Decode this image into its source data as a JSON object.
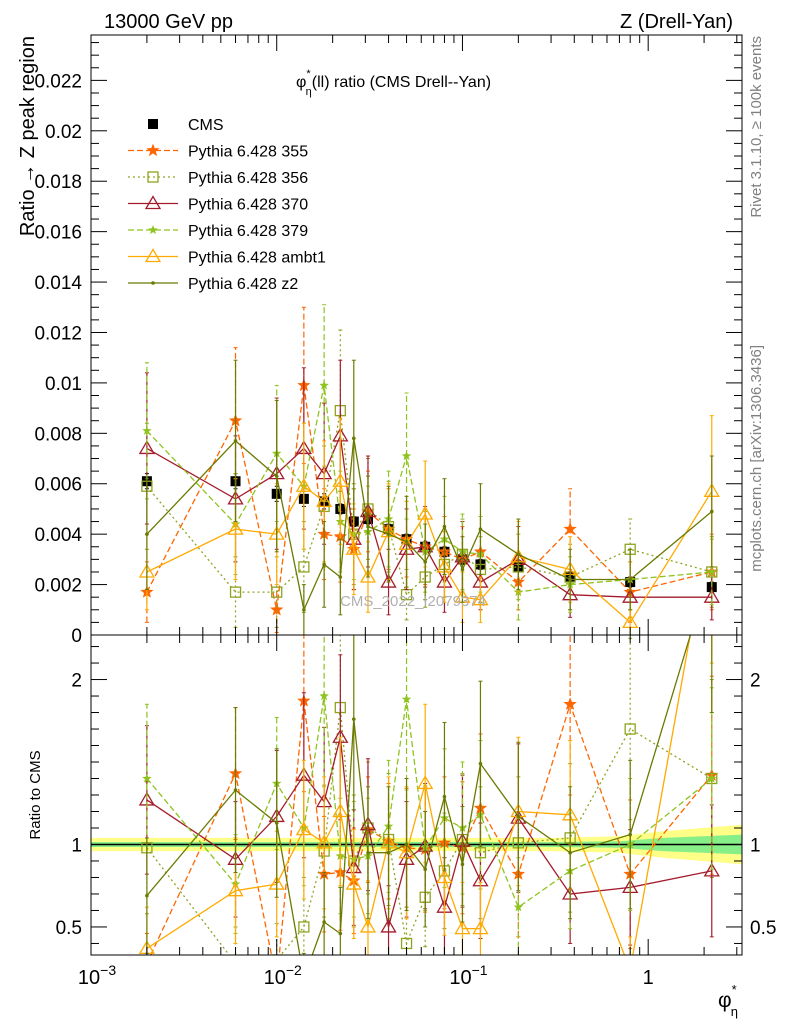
{
  "header": {
    "left": "13000 GeV pp",
    "right": "Z (Drell-Yan)"
  },
  "side_labels": {
    "rivet": "Rivet 3.1.10, ≥ 100k events",
    "mcplots": "mcplots.cern.ch [arXiv:1306.3436]"
  },
  "chart_data": [
    {
      "type": "line",
      "panel": "main",
      "title": "φ*η(ll) ratio (CMS Drell--Yan)",
      "ylabel": "Ratio → Z peak region",
      "xlabel": "",
      "x_scale": "log",
      "xlim": [
        0.001,
        3.2
      ],
      "ylim": [
        0,
        0.0238
      ],
      "yticks": [
        0,
        0.002,
        0.004,
        0.006,
        0.008,
        0.01,
        0.012,
        0.014,
        0.016,
        0.018,
        0.02,
        0.022
      ],
      "ytick_labels": [
        "0",
        "0.002",
        "0.004",
        "0.006",
        "0.008",
        "0.01",
        "0.012",
        "0.014",
        "0.016",
        "0.018",
        "0.02",
        "0.022"
      ],
      "xticks": [
        0.001,
        0.01,
        0.1,
        1
      ],
      "xtick_labels": [
        "10−3",
        "10−2",
        "10−1",
        "1"
      ],
      "watermark": "CMS_2022_I2079374",
      "legend_position": "top-left",
      "x": [
        0.002,
        0.006,
        0.01,
        0.014,
        0.018,
        0.022,
        0.026,
        0.031,
        0.04,
        0.05,
        0.063,
        0.08,
        0.1,
        0.125,
        0.2,
        0.38,
        0.8,
        2.2
      ],
      "series": [
        {
          "name": "CMS",
          "color": "#000000",
          "marker": "square",
          "values": [
            0.0061,
            0.0061,
            0.0056,
            0.0054,
            0.0053,
            0.005,
            0.0045,
            0.0046,
            0.0042,
            0.0038,
            0.0035,
            0.0033,
            0.003,
            0.0028,
            0.0027,
            0.0023,
            0.0021,
            0.0019
          ],
          "errors": [
            0.0003,
            0.0003,
            0.0003,
            0.0003,
            0.0003,
            0.0002,
            0.0002,
            0.0002,
            0.0002,
            0.0002,
            0.0002,
            0.0002,
            0.0002,
            0.0002,
            0.0002,
            0.0002,
            0.0002,
            0.0002
          ]
        },
        {
          "name": "Pythia 6.428 355",
          "color": "#ff6600",
          "dash": "6,3",
          "marker": "star",
          "values": [
            0.0017,
            0.0085,
            0.001,
            0.0099,
            0.004,
            0.0039,
            0.0034,
            0.0049,
            0.0042,
            0.0038,
            0.0035,
            0.0033,
            0.003,
            0.0033,
            0.0021,
            0.0042,
            0.0017,
            0.0025
          ],
          "errors": [
            0.0012,
            0.0029,
            0.0009,
            0.0031,
            0.0018,
            0.0018,
            0.0016,
            0.0016,
            0.0016,
            0.0015,
            0.0015,
            0.0014,
            0.0013,
            0.0014,
            0.0011,
            0.0016,
            0.0012,
            0.0015
          ]
        },
        {
          "name": "Pythia 6.428 356",
          "color": "#8fa320",
          "dash": "2,3",
          "marker": "square-open",
          "values": [
            0.0059,
            0.0017,
            0.0017,
            0.0027,
            0.0051,
            0.0089,
            0.004,
            0.005,
            0.0043,
            0.0016,
            0.0023,
            0.0028,
            0.0032,
            0.0026,
            0.0027,
            0.0023,
            0.0034,
            0.0025
          ],
          "errors": [
            0.0025,
            0.0014,
            0.0014,
            0.0018,
            0.0024,
            0.0032,
            0.002,
            0.002,
            0.0018,
            0.001,
            0.0012,
            0.0013,
            0.0014,
            0.0013,
            0.0013,
            0.0013,
            0.0012,
            0.0014
          ]
        },
        {
          "name": "Pythia 6.428 370",
          "color": "#a31c2c",
          "marker": "triangle-open",
          "values": [
            0.0074,
            0.0054,
            0.0064,
            0.0074,
            0.0064,
            0.0079,
            0.0038,
            0.0049,
            0.0021,
            0.0034,
            0.0035,
            0.0021,
            0.0031,
            0.0021,
            0.003,
            0.0016,
            0.0015,
            0.0015
          ],
          "errors": [
            0.003,
            0.0025,
            0.003,
            0.0032,
            0.0028,
            0.003,
            0.002,
            0.0022,
            0.0013,
            0.0016,
            0.0016,
            0.0012,
            0.0014,
            0.0011,
            0.0013,
            0.0009,
            0.0008,
            0.0009
          ]
        },
        {
          "name": "Pythia 6.428 379",
          "color": "#8fc31f",
          "dash": "6,3",
          "marker": "star-small",
          "values": [
            0.0081,
            0.0044,
            0.0072,
            0.0059,
            0.0099,
            0.0045,
            0.004,
            0.0041,
            0.0046,
            0.0071,
            0.0033,
            0.0038,
            0.0033,
            0.0032,
            0.0017,
            0.002,
            0.0022,
            0.0025
          ],
          "errors": [
            0.0027,
            0.002,
            0.0027,
            0.0025,
            0.0032,
            0.002,
            0.0018,
            0.0018,
            0.0019,
            0.0025,
            0.0016,
            0.0017,
            0.0015,
            0.0015,
            0.0011,
            0.0011,
            0.0012,
            0.0013
          ]
        },
        {
          "name": "Pythia 6.428 ambt1",
          "color": "#ffaa00",
          "marker": "triangle-open",
          "values": [
            0.0025,
            0.0042,
            0.004,
            0.0059,
            0.0053,
            0.0061,
            0.0034,
            0.0023,
            0.0041,
            0.0036,
            0.0048,
            0.0027,
            0.0015,
            0.0014,
            0.0031,
            0.0026,
            0.0005,
            0.0057
          ],
          "errors": [
            0.0015,
            0.002,
            0.002,
            0.0025,
            0.0024,
            0.0025,
            0.0018,
            0.0014,
            0.0019,
            0.0017,
            0.0021,
            0.0014,
            0.001,
            0.0009,
            0.0014,
            0.0013,
            0.0005,
            0.003
          ]
        },
        {
          "name": "Pythia 6.428 z2",
          "color": "#6b7a00",
          "marker": "dot",
          "values": [
            0.004,
            0.0077,
            0.0063,
            0.001,
            0.0028,
            0.0023,
            0.0078,
            0.0043,
            0.004,
            0.0037,
            0.0029,
            0.0043,
            0.0026,
            0.0042,
            0.0032,
            0.0022,
            0.0022,
            0.0049
          ],
          "errors": [
            0.0022,
            0.0032,
            0.003,
            0.001,
            0.0017,
            0.0015,
            0.0031,
            0.002,
            0.0019,
            0.0018,
            0.0015,
            0.0019,
            0.0013,
            0.0018,
            0.0014,
            0.0012,
            0.0012,
            0.0022
          ]
        }
      ]
    },
    {
      "type": "line",
      "panel": "ratio",
      "ylabel": "Ratio to CMS",
      "xlabel": "φ*η",
      "x_scale": "log",
      "xlim": [
        0.001,
        3.2
      ],
      "ylim": [
        0.33,
        2.27
      ],
      "yticks": [
        0.5,
        1,
        2
      ],
      "ytick_labels": [
        "0.5",
        "1",
        "2"
      ],
      "xticks": [
        0.001,
        0.01,
        0.1,
        1
      ],
      "xtick_labels": [
        "10−3",
        "10−2",
        "10−1",
        "1"
      ],
      "reference_line": 1,
      "uncertainty_bands": [
        {
          "color": "#ffff88",
          "x": [
            0.001,
            0.3,
            0.7,
            1.2,
            3.2
          ],
          "lower": [
            0.96,
            0.96,
            0.95,
            0.92,
            0.88
          ],
          "upper": [
            1.04,
            1.04,
            1.05,
            1.08,
            1.12
          ]
        },
        {
          "color": "#88ee88",
          "x": [
            0.001,
            0.3,
            0.7,
            1.2,
            3.2
          ],
          "lower": [
            0.985,
            0.985,
            0.98,
            0.96,
            0.94
          ],
          "upper": [
            1.015,
            1.015,
            1.02,
            1.04,
            1.06
          ]
        }
      ],
      "x": [
        0.002,
        0.006,
        0.01,
        0.014,
        0.018,
        0.022,
        0.026,
        0.031,
        0.04,
        0.05,
        0.063,
        0.08,
        0.1,
        0.125,
        0.2,
        0.38,
        0.8,
        2.2
      ],
      "series": [
        {
          "name": "Pythia 6.428 355",
          "color": "#ff6600",
          "dash": "6,3",
          "marker": "star",
          "values": [
            0.28,
            1.43,
            0.17,
            1.87,
            0.82,
            0.83,
            0.78,
            1.09,
            1.02,
            0.98,
            0.97,
            1.01,
            0.98,
            1.22,
            0.82,
            1.85,
            0.82,
            1.42
          ],
          "errors": [
            0.18,
            0.4,
            0.15,
            0.55,
            0.35,
            0.35,
            0.32,
            0.32,
            0.35,
            0.36,
            0.38,
            0.4,
            0.4,
            0.45,
            0.38,
            0.55,
            0.45,
            0.6
          ]
        },
        {
          "name": "Pythia 6.428 356",
          "color": "#8fa320",
          "dash": "2,3",
          "marker": "square-open",
          "values": [
            0.98,
            0.28,
            0.3,
            0.5,
            0.96,
            1.83,
            0.9,
            1.1,
            1.03,
            0.4,
            0.68,
            0.84,
            1.03,
            0.95,
            1.01,
            1.04,
            1.7,
            1.4
          ],
          "errors": [
            0.4,
            0.22,
            0.22,
            0.3,
            0.4,
            0.6,
            0.4,
            0.4,
            0.4,
            0.22,
            0.3,
            0.35,
            0.4,
            0.4,
            0.4,
            0.45,
            0.55,
            0.6
          ]
        },
        {
          "name": "Pythia 6.428 370",
          "color": "#a31c2c",
          "marker": "triangle-open",
          "values": [
            1.27,
            0.91,
            1.17,
            1.42,
            1.26,
            1.65,
            0.86,
            1.12,
            0.5,
            0.91,
            0.99,
            0.62,
            1.02,
            0.78,
            1.16,
            0.7,
            0.74,
            0.84
          ],
          "errors": [
            0.45,
            0.35,
            0.4,
            0.5,
            0.45,
            0.5,
            0.35,
            0.4,
            0.25,
            0.35,
            0.38,
            0.3,
            0.4,
            0.35,
            0.45,
            0.3,
            0.35,
            0.4
          ]
        },
        {
          "name": "Pythia 6.428 379",
          "color": "#8fc31f",
          "dash": "6,3",
          "marker": "star-small",
          "values": [
            1.4,
            0.76,
            1.37,
            1.1,
            1.9,
            0.93,
            0.91,
            0.93,
            1.11,
            1.88,
            0.98,
            1.16,
            1.1,
            1.18,
            0.62,
            0.84,
            1.0,
            1.4
          ],
          "errors": [
            0.45,
            0.3,
            0.4,
            0.35,
            0.55,
            0.35,
            0.35,
            0.35,
            0.4,
            0.55,
            0.38,
            0.42,
            0.4,
            0.45,
            0.3,
            0.35,
            0.4,
            0.55
          ]
        },
        {
          "name": "Pythia 6.428 ambt1",
          "color": "#ffaa00",
          "marker": "triangle-open",
          "values": [
            0.37,
            0.72,
            0.76,
            1.09,
            1.01,
            1.2,
            0.76,
            0.5,
            1.01,
            0.95,
            1.37,
            0.8,
            0.49,
            0.49,
            1.2,
            1.18,
            0.24,
            3.0
          ],
          "errors": [
            0.25,
            0.32,
            0.32,
            0.42,
            0.4,
            0.45,
            0.33,
            0.28,
            0.4,
            0.4,
            0.48,
            0.35,
            0.28,
            0.28,
            0.45,
            0.45,
            0.2,
            0.9
          ]
        },
        {
          "name": "Pythia 6.428 z2",
          "color": "#6b7a00",
          "marker": "dot",
          "values": [
            0.69,
            1.33,
            1.13,
            0.19,
            0.53,
            0.46,
            1.76,
            0.95,
            0.95,
            1.0,
            0.85,
            1.29,
            0.88,
            1.49,
            1.17,
            0.95,
            1.06,
            2.7
          ],
          "errors": [
            0.35,
            0.5,
            0.45,
            0.15,
            0.3,
            0.28,
            0.55,
            0.4,
            0.4,
            0.4,
            0.35,
            0.45,
            0.35,
            0.5,
            0.45,
            0.4,
            0.45,
            0.9
          ]
        }
      ]
    }
  ]
}
